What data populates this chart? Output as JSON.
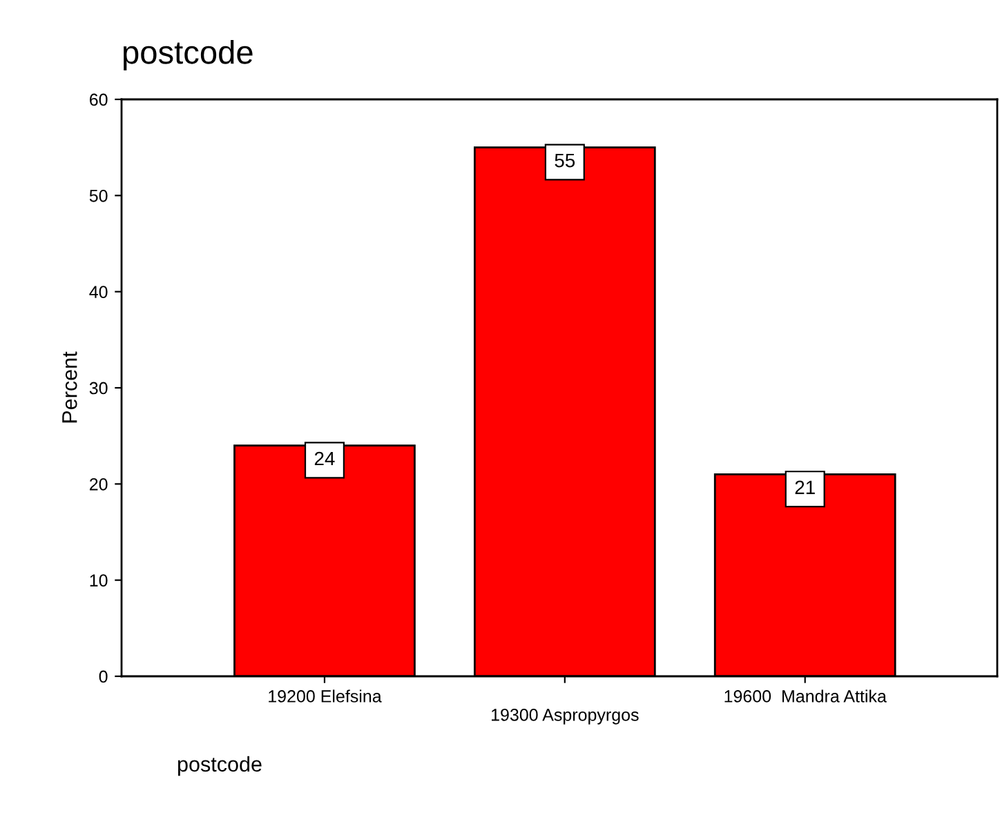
{
  "chart_data": {
    "type": "bar",
    "title": "postcode",
    "xlabel": "postcode",
    "ylabel": "Percent",
    "categories": [
      "19200 Elefsina",
      "19300 Aspropyrgos",
      "19600  Mandra Attika"
    ],
    "values": [
      24,
      55,
      21
    ],
    "color": "#ff0000",
    "ylim": [
      0,
      60
    ],
    "yticks": [
      0,
      10,
      20,
      30,
      40,
      50,
      60
    ],
    "grid": false,
    "data_labels": true
  }
}
